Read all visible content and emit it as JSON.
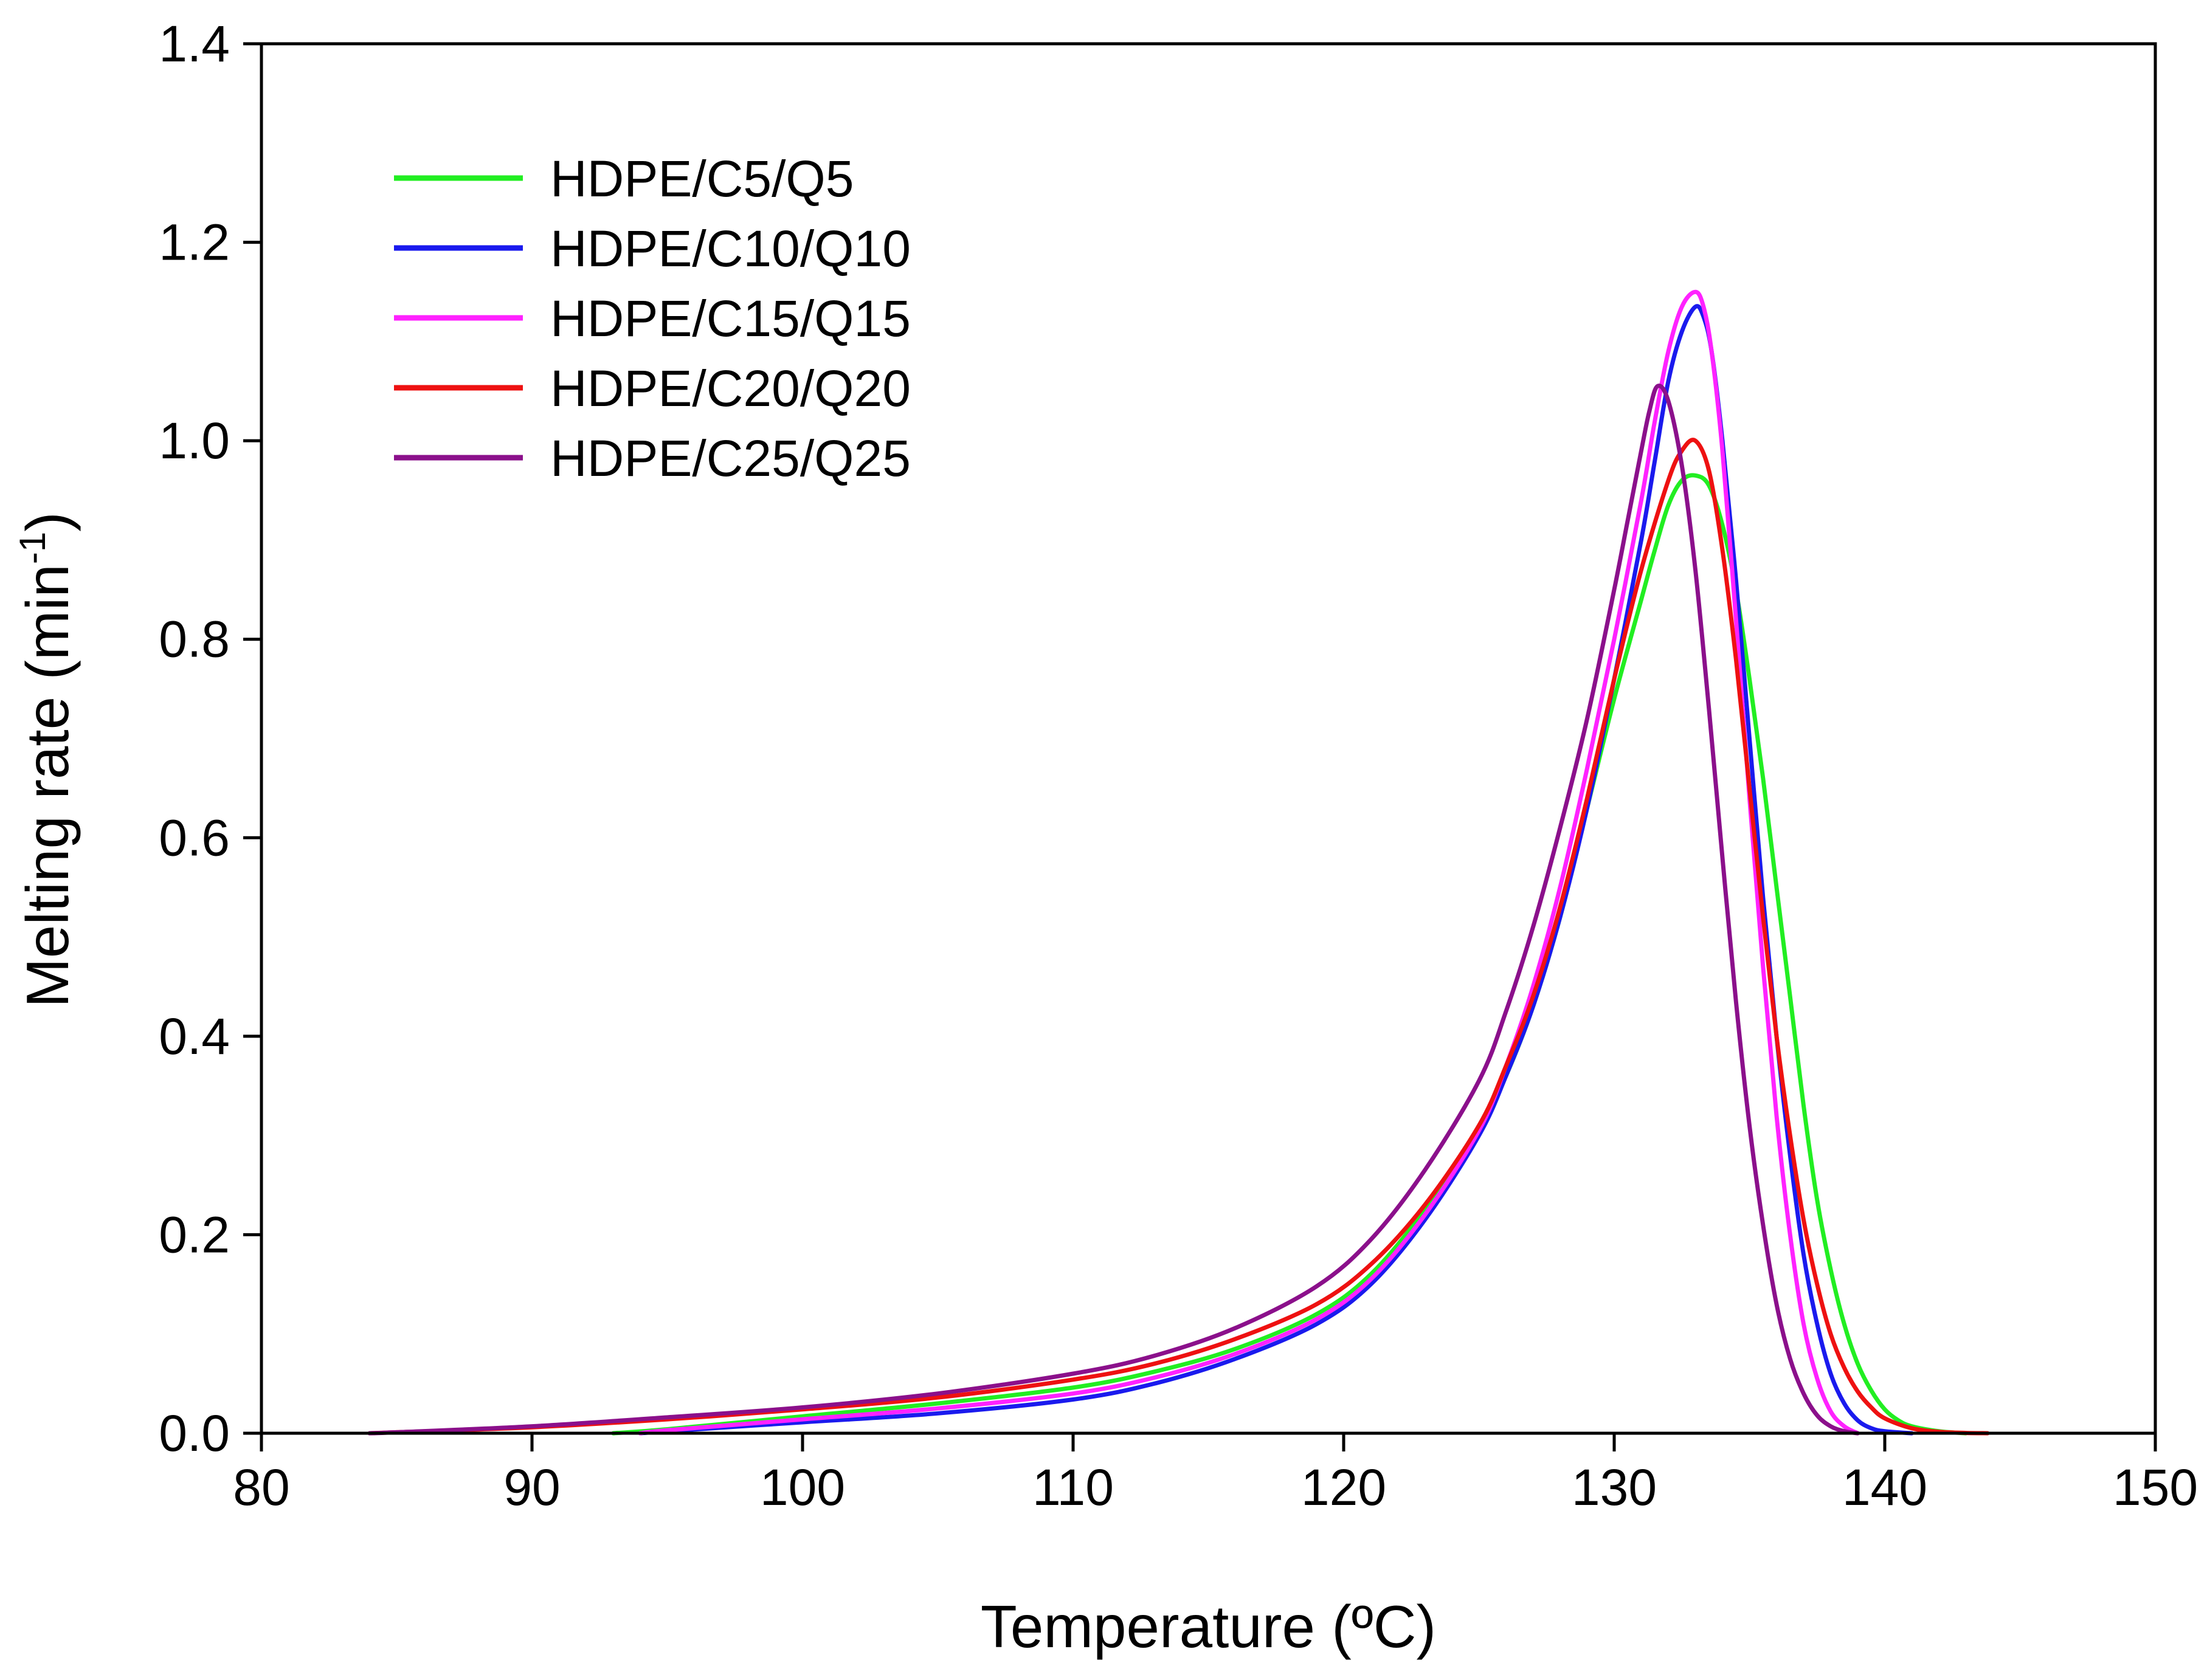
{
  "chart_data": {
    "type": "line",
    "title": "",
    "xlabel": "Temperature (ºC)",
    "ylabel_main": "Melting rate (min",
    "ylabel_sup": "-1",
    "ylabel_close": ")",
    "xlim": [
      80,
      150
    ],
    "ylim": [
      0,
      1.4
    ],
    "xticks": [
      80,
      90,
      100,
      110,
      120,
      130,
      140,
      150
    ],
    "yticks": [
      0.0,
      0.2,
      0.4,
      0.6,
      0.8,
      1.0,
      1.2,
      1.4
    ],
    "ytick_labels": [
      "0.0",
      "0.2",
      "0.4",
      "0.6",
      "0.8",
      "1.0",
      "1.2",
      "1.4"
    ],
    "grid": false,
    "legend_position": "top-left",
    "series": [
      {
        "name": "HDPE/C5/Q5",
        "color": "#22ee22",
        "x": [
          93,
          95,
          100,
          105,
          110,
          113,
          116,
          119,
          121,
          123,
          125,
          126,
          127,
          128,
          129,
          130,
          131,
          131.5,
          132,
          132.5,
          133,
          133.5,
          134,
          134.5,
          135,
          135.5,
          136,
          136.5,
          137,
          137.5,
          138,
          138.5,
          139,
          139.5,
          140,
          140.5,
          141,
          142,
          143
        ],
        "values": [
          0,
          0.004,
          0.017,
          0.03,
          0.046,
          0.062,
          0.085,
          0.12,
          0.16,
          0.225,
          0.305,
          0.36,
          0.43,
          0.52,
          0.63,
          0.74,
          0.84,
          0.89,
          0.935,
          0.96,
          0.965,
          0.955,
          0.915,
          0.85,
          0.76,
          0.66,
          0.55,
          0.44,
          0.33,
          0.235,
          0.165,
          0.11,
          0.07,
          0.043,
          0.024,
          0.013,
          0.007,
          0.002,
          0
        ]
      },
      {
        "name": "HDPE/C10/Q10",
        "color": "#1a1aee",
        "x": [
          94,
          95,
          100,
          105,
          110,
          113,
          116,
          119,
          121,
          123,
          125,
          126,
          127,
          128,
          129,
          130,
          131,
          131.5,
          132,
          132.5,
          133,
          133.3,
          133.6,
          134,
          134.5,
          135,
          135.5,
          136,
          136.5,
          137,
          137.5,
          138,
          138.5,
          139,
          139.5,
          140,
          141
        ],
        "values": [
          0,
          0.002,
          0.011,
          0.02,
          0.034,
          0.05,
          0.075,
          0.11,
          0.15,
          0.215,
          0.3,
          0.36,
          0.43,
          0.52,
          0.63,
          0.76,
          0.9,
          0.98,
          1.06,
          1.11,
          1.135,
          1.125,
          1.09,
          1.0,
          0.86,
          0.7,
          0.54,
          0.4,
          0.28,
          0.18,
          0.11,
          0.06,
          0.03,
          0.013,
          0.005,
          0.002,
          0
        ]
      },
      {
        "name": "HDPE/C15/Q15",
        "color": "#ff22ff",
        "x": [
          94,
          95,
          100,
          105,
          110,
          113,
          116,
          119,
          121,
          123,
          125,
          126,
          127,
          128,
          129,
          130,
          131,
          131.5,
          132,
          132.5,
          133,
          133.3,
          133.6,
          134,
          134.5,
          135,
          135.5,
          136,
          136.5,
          137,
          137.5,
          138,
          138.5,
          139
        ],
        "values": [
          0,
          0.003,
          0.014,
          0.025,
          0.04,
          0.056,
          0.08,
          0.115,
          0.155,
          0.22,
          0.305,
          0.37,
          0.45,
          0.55,
          0.67,
          0.8,
          0.94,
          1.02,
          1.09,
          1.135,
          1.15,
          1.135,
          1.09,
          0.99,
          0.82,
          0.64,
          0.47,
          0.32,
          0.2,
          0.11,
          0.055,
          0.022,
          0.007,
          0
        ]
      },
      {
        "name": "HDPE/C20/Q20",
        "color": "#ee1111",
        "x": [
          84,
          85,
          90,
          95,
          100,
          105,
          110,
          113,
          116,
          119,
          121,
          123,
          125,
          126,
          127,
          128,
          129,
          130,
          131,
          132,
          132.5,
          133,
          133.5,
          134,
          134.5,
          135,
          135.5,
          136,
          136.5,
          137,
          137.5,
          138,
          138.5,
          139,
          139.5,
          140,
          141,
          142,
          143,
          143.8
        ],
        "values": [
          0,
          0.001,
          0.006,
          0.014,
          0.024,
          0.036,
          0.054,
          0.07,
          0.095,
          0.13,
          0.17,
          0.23,
          0.31,
          0.37,
          0.44,
          0.53,
          0.64,
          0.76,
          0.87,
          0.96,
          0.99,
          1.0,
          0.97,
          0.89,
          0.78,
          0.65,
          0.52,
          0.4,
          0.3,
          0.215,
          0.15,
          0.1,
          0.066,
          0.042,
          0.026,
          0.015,
          0.005,
          0.0015,
          0.0003,
          0
        ]
      },
      {
        "name": "HDPE/C25/Q25",
        "color": "#8b108b",
        "x": [
          84,
          85,
          90,
          95,
          100,
          105,
          110,
          113,
          116,
          119,
          121,
          123,
          125,
          126,
          127,
          128,
          129,
          130,
          130.5,
          131,
          131.3,
          131.6,
          132,
          132.5,
          133,
          133.5,
          134,
          134.5,
          135,
          135.5,
          136,
          136.5,
          137,
          137.5,
          138,
          138.5,
          139
        ],
        "values": [
          0,
          0.001,
          0.007,
          0.016,
          0.026,
          0.04,
          0.06,
          0.078,
          0.106,
          0.148,
          0.195,
          0.265,
          0.355,
          0.425,
          0.51,
          0.61,
          0.72,
          0.85,
          0.92,
          0.99,
          1.03,
          1.055,
          1.04,
          0.975,
          0.87,
          0.73,
          0.58,
          0.435,
          0.31,
          0.21,
          0.13,
          0.075,
          0.04,
          0.018,
          0.007,
          0.002,
          0
        ]
      }
    ]
  }
}
